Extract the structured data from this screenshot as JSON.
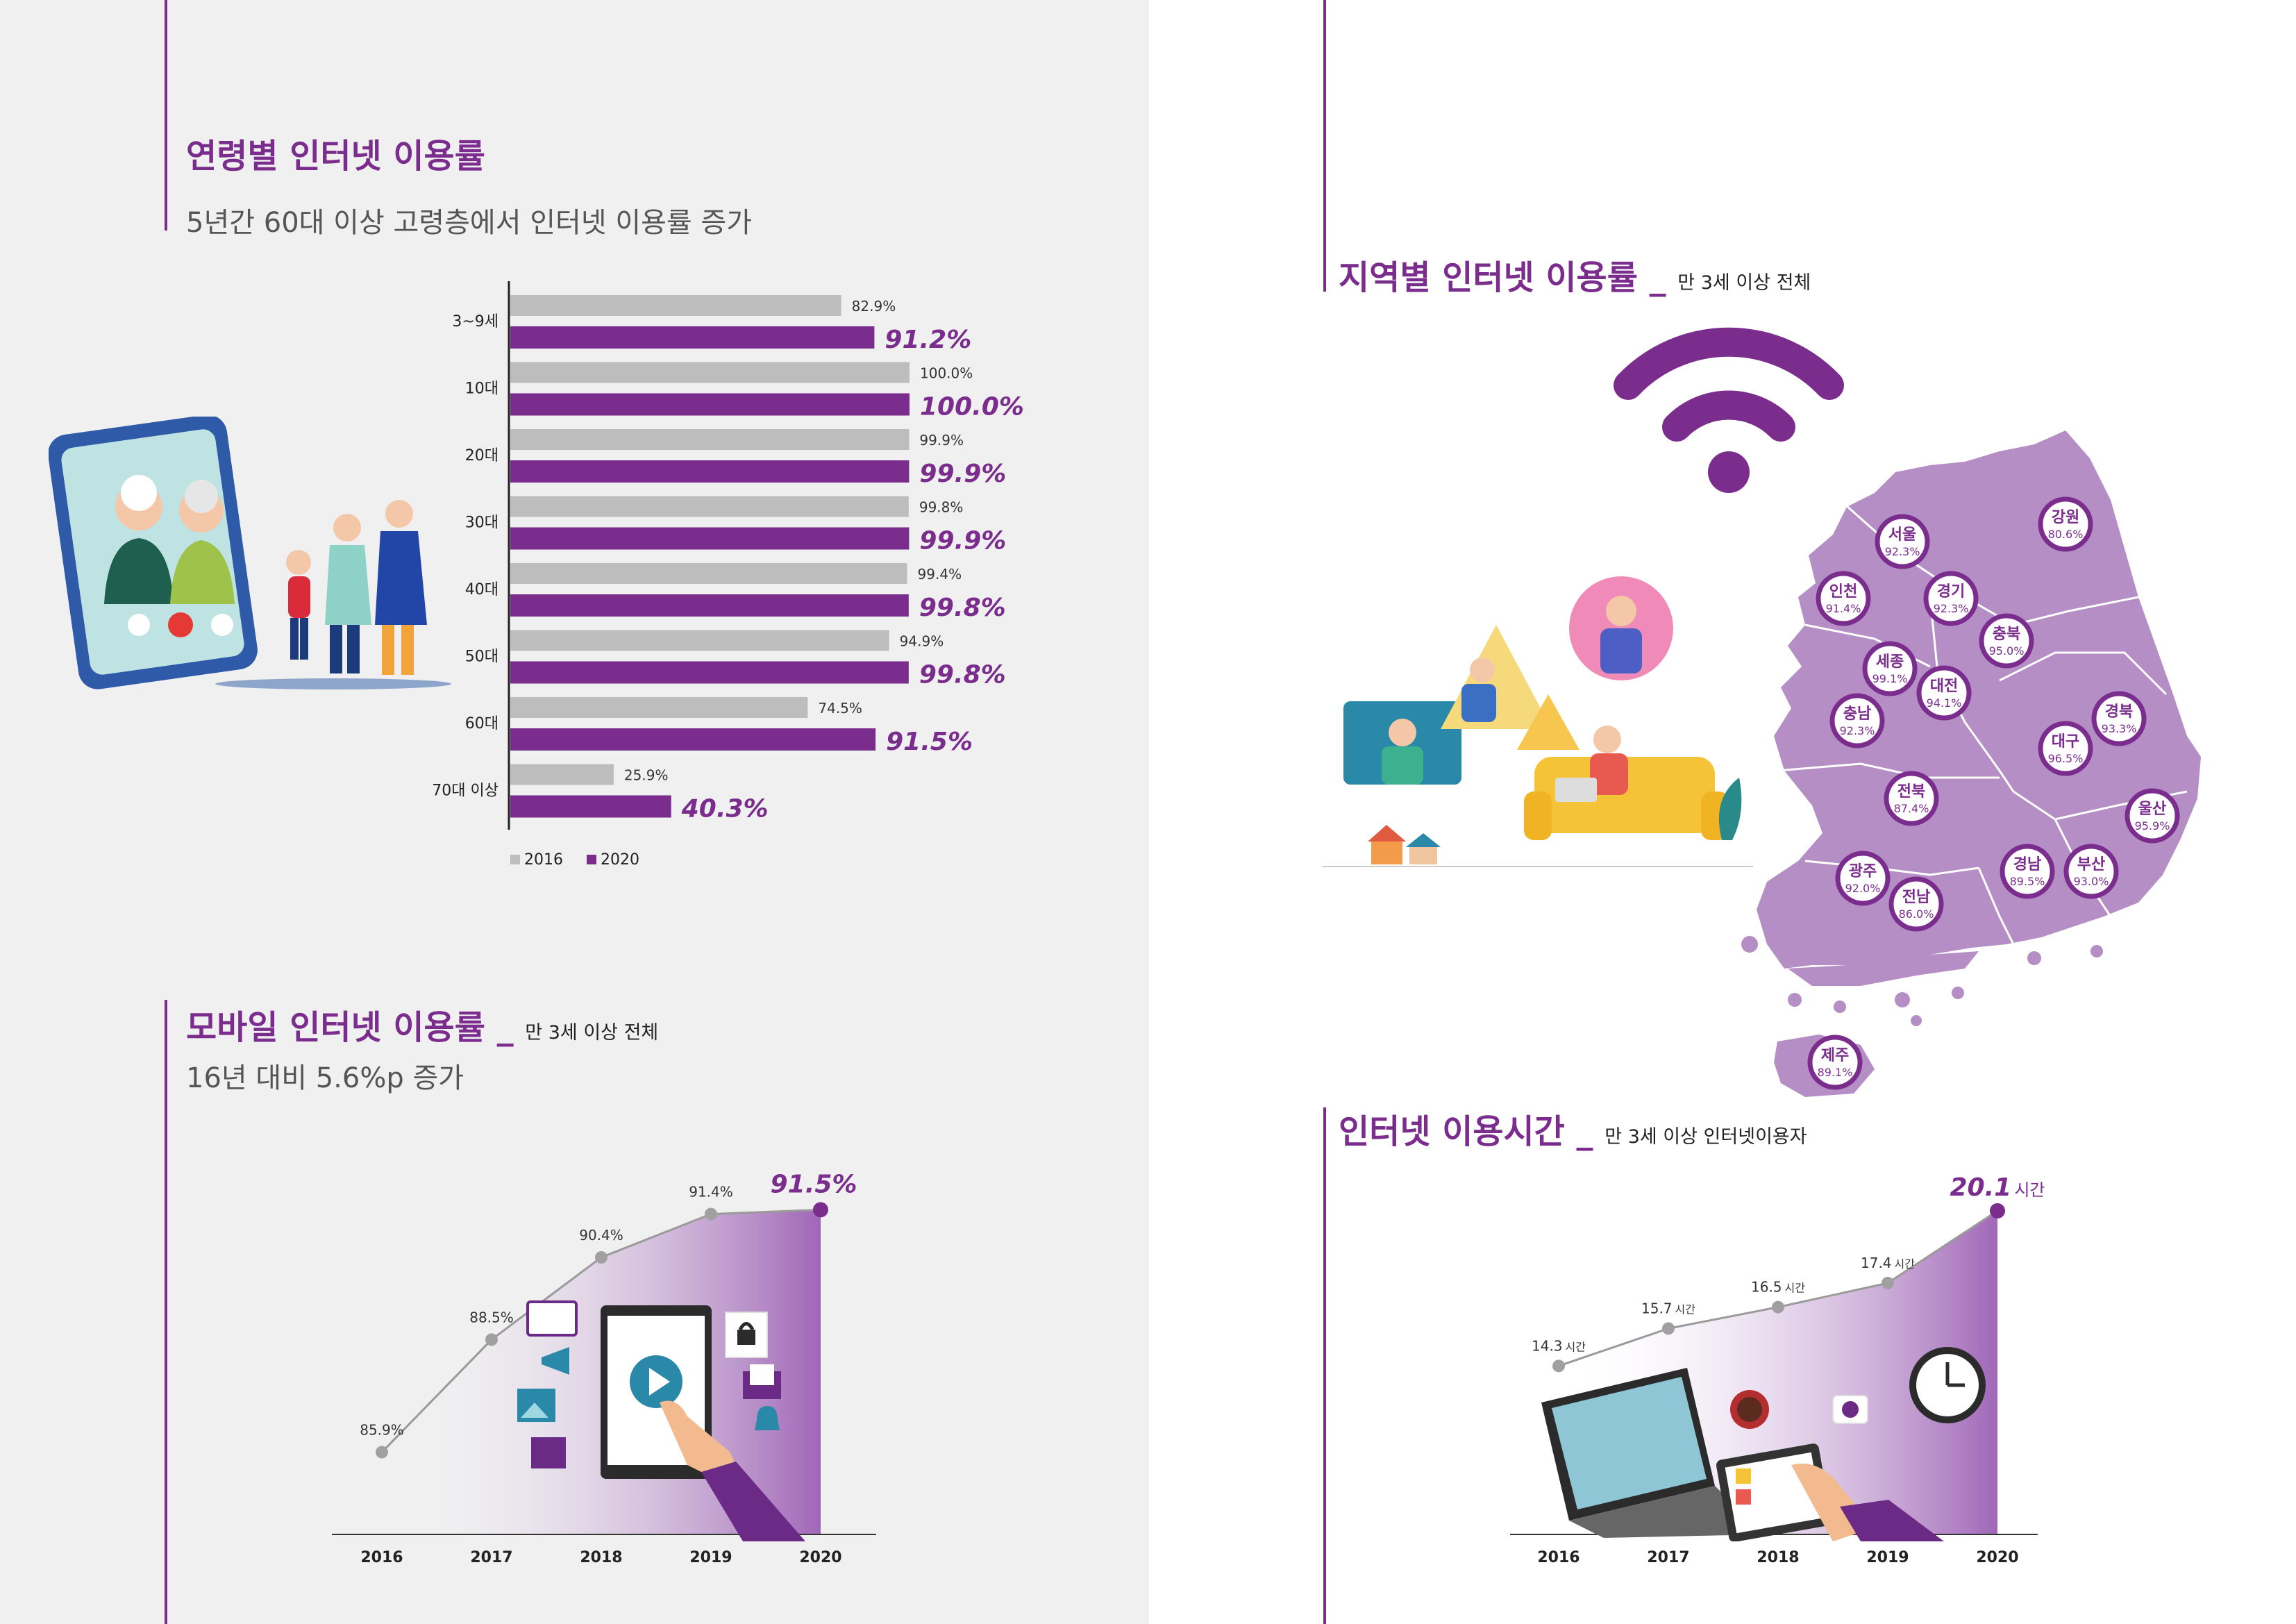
{
  "panel_age": {
    "title": "연령별 인터넷 이용률",
    "subtitle": "5년간 60대 이상 고령층에서 인터넷 이용률 증가"
  },
  "panel_mobile": {
    "title": "모바일 인터넷 이용률 _",
    "note": "만 3세 이상 전체",
    "subtitle": "16년 대비 5.6%p 증가"
  },
  "panel_region": {
    "title": "지역별 인터넷 이용률 _",
    "note": "만 3세 이상 전체"
  },
  "panel_time": {
    "title": "인터넷 이용시간 _",
    "note": "만 3세 이상 인터넷이용자"
  },
  "colors": {
    "purple": "#7b2d8e",
    "gray": "#bdbdbd",
    "map_fill": "#b48ec4",
    "map_border": "#ffffff",
    "area_light": "#e9dcef"
  },
  "chart_data": [
    {
      "type": "bar",
      "orientation": "horizontal",
      "categories": [
        "3~9세",
        "10대",
        "20대",
        "30대",
        "40대",
        "50대",
        "60대",
        "70대 이상"
      ],
      "series": [
        {
          "name": "2016",
          "values": [
            82.9,
            100.0,
            99.9,
            99.8,
            99.4,
            94.9,
            74.5,
            25.9
          ],
          "labels": [
            "82.9%",
            "100.0%",
            "99.9%",
            "99.8%",
            "99.4%",
            "94.9%",
            "74.5%",
            "25.9%"
          ]
        },
        {
          "name": "2020",
          "values": [
            91.2,
            100.0,
            99.9,
            99.9,
            99.8,
            99.8,
            91.5,
            40.3
          ],
          "labels": [
            "91.2%",
            "100.0%",
            "99.9%",
            "99.9%",
            "99.8%",
            "99.8%",
            "91.5%",
            "40.3%"
          ]
        }
      ],
      "xlim": [
        0,
        100
      ],
      "legend": "bottom",
      "grid": false
    },
    {
      "type": "area",
      "x": [
        "2016",
        "2017",
        "2018",
        "2019",
        "2020"
      ],
      "values": [
        85.9,
        88.5,
        90.4,
        91.4,
        91.5
      ],
      "labels": [
        "85.9%",
        "88.5%",
        "90.4%",
        "91.4%",
        "91.5%"
      ],
      "ylim": [
        84,
        92.5
      ],
      "grid": false
    },
    {
      "type": "area",
      "x": [
        "2016",
        "2017",
        "2018",
        "2019",
        "2020"
      ],
      "values": [
        14.3,
        15.7,
        16.5,
        17.4,
        20.1
      ],
      "value_texts": [
        "14.3",
        "15.7",
        "16.5",
        "17.4",
        "20.1"
      ],
      "unit": "시간",
      "ylim": [
        8,
        21.5
      ],
      "grid": false
    },
    {
      "type": "map",
      "regions": [
        {
          "name": "서울",
          "value": "92.3%"
        },
        {
          "name": "강원",
          "value": "80.6%"
        },
        {
          "name": "인천",
          "value": "91.4%"
        },
        {
          "name": "경기",
          "value": "92.3%"
        },
        {
          "name": "충북",
          "value": "95.0%"
        },
        {
          "name": "세종",
          "value": "99.1%"
        },
        {
          "name": "대전",
          "value": "94.1%"
        },
        {
          "name": "충남",
          "value": "92.3%"
        },
        {
          "name": "경북",
          "value": "93.3%"
        },
        {
          "name": "대구",
          "value": "96.5%"
        },
        {
          "name": "전북",
          "value": "87.4%"
        },
        {
          "name": "울산",
          "value": "95.9%"
        },
        {
          "name": "광주",
          "value": "92.0%"
        },
        {
          "name": "전남",
          "value": "86.0%"
        },
        {
          "name": "경남",
          "value": "89.5%"
        },
        {
          "name": "부산",
          "value": "93.0%"
        },
        {
          "name": "제주",
          "value": "89.1%"
        }
      ]
    }
  ]
}
